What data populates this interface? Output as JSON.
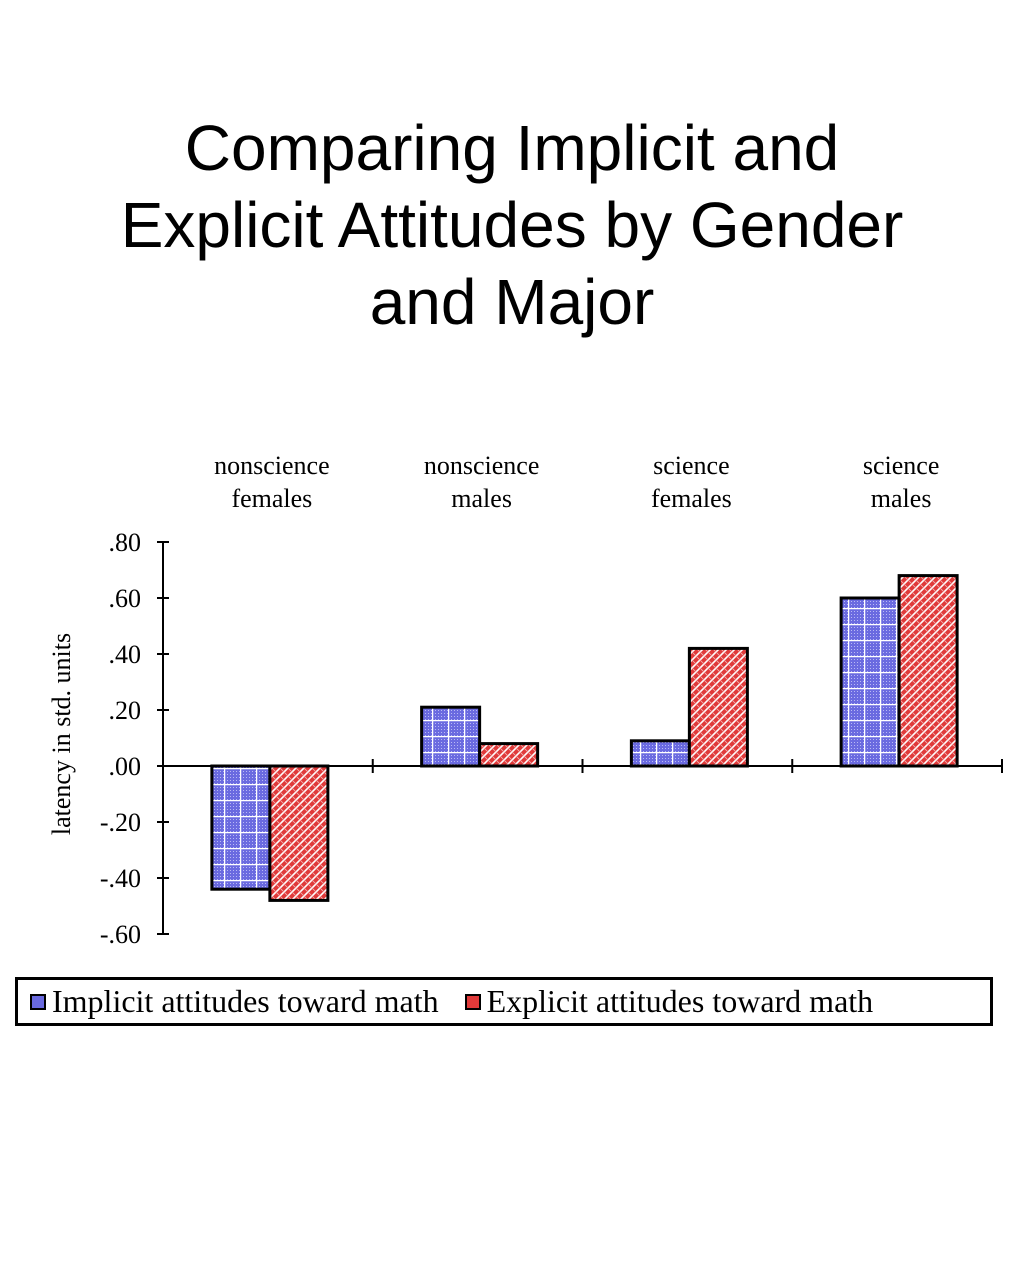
{
  "title_lines": [
    "Comparing Implicit and",
    "Explicit Attitudes by Gender",
    "and Major"
  ],
  "chart_data": {
    "type": "bar",
    "title": "Comparing Implicit and Explicit Attitudes by Gender and Major",
    "categories": [
      [
        "nonscience",
        "females"
      ],
      [
        "nonscience",
        "males"
      ],
      [
        "science",
        "females"
      ],
      [
        "science",
        "males"
      ]
    ],
    "series": [
      {
        "name": "Implicit attitudes toward math",
        "values": [
          -0.44,
          0.21,
          0.09,
          0.6
        ],
        "color": "#6a6ae0",
        "pattern": "grid"
      },
      {
        "name": "Explicit attitudes toward math",
        "values": [
          -0.48,
          0.08,
          0.42,
          0.68
        ],
        "color": "#e03a3a",
        "pattern": "diagonal"
      }
    ],
    "ylabel": "latency in std. units",
    "ylim": [
      -0.6,
      0.8
    ],
    "yticks": [
      0.8,
      0.6,
      0.4,
      0.2,
      0.0,
      -0.2,
      -0.4,
      -0.6
    ],
    "ytick_labels": [
      ".80",
      ".60",
      ".40",
      ".20",
      ".00",
      "-.20",
      "-.40",
      "-.60"
    ],
    "category_labels_position": "top",
    "legend_position": "bottom",
    "grid": false
  }
}
